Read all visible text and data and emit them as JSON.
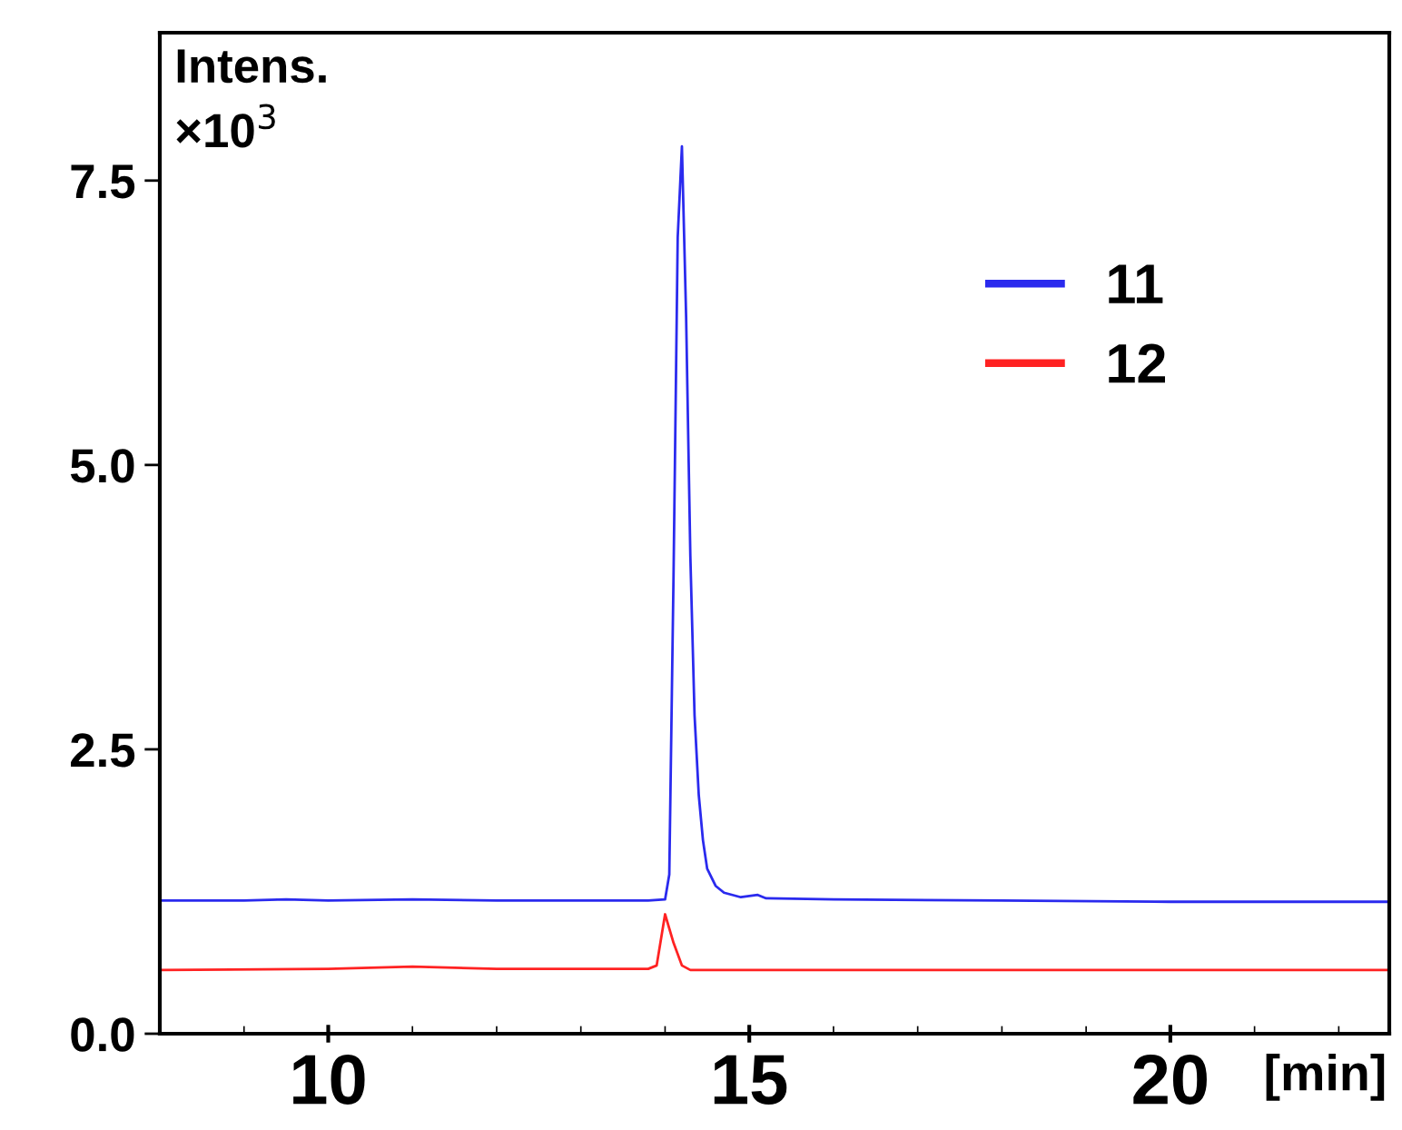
{
  "chart_data": {
    "type": "line",
    "xlabel": "[min]",
    "annotations": [
      "Intens.",
      "×10$^{3}$"
    ],
    "xlim": [
      8.0,
      22.6
    ],
    "xticks": [
      10,
      15,
      20
    ],
    "ylim": [
      0,
      8.8
    ],
    "yticks": [
      {
        "value": 0,
        "label": "0.0"
      },
      2.5,
      {
        "value": 5,
        "label": "5.0"
      },
      7.5
    ],
    "grid": false,
    "legend": "top right",
    "marker": "none",
    "line_style": "solid",
    "series": [
      {
        "name": "11",
        "color": "#2a2aee",
        "x": [
          8.0,
          9.0,
          9.5,
          10.0,
          11.0,
          12.0,
          13.0,
          13.8,
          14.0,
          14.05,
          14.1,
          14.15,
          14.2,
          14.25,
          14.3,
          14.35,
          14.4,
          14.45,
          14.5,
          14.6,
          14.7,
          14.9,
          15.1,
          15.2,
          16,
          18,
          20,
          22.6
        ],
        "values": [
          1.17,
          1.17,
          1.18,
          1.17,
          1.18,
          1.17,
          1.17,
          1.17,
          1.18,
          1.4,
          4.0,
          7.0,
          7.8,
          6.3,
          4.2,
          2.8,
          2.1,
          1.7,
          1.45,
          1.3,
          1.24,
          1.2,
          1.22,
          1.19,
          1.18,
          1.17,
          1.16,
          1.16
        ]
      },
      {
        "name": "12",
        "color": "#ff2222",
        "x": [
          8.0,
          10,
          11,
          12,
          13,
          13.8,
          13.9,
          14.0,
          14.1,
          14.2,
          14.3,
          15,
          18,
          20,
          22.6
        ],
        "values": [
          0.56,
          0.57,
          0.59,
          0.57,
          0.57,
          0.57,
          0.6,
          1.05,
          0.8,
          0.6,
          0.56,
          0.56,
          0.56,
          0.56,
          0.56
        ]
      }
    ]
  }
}
